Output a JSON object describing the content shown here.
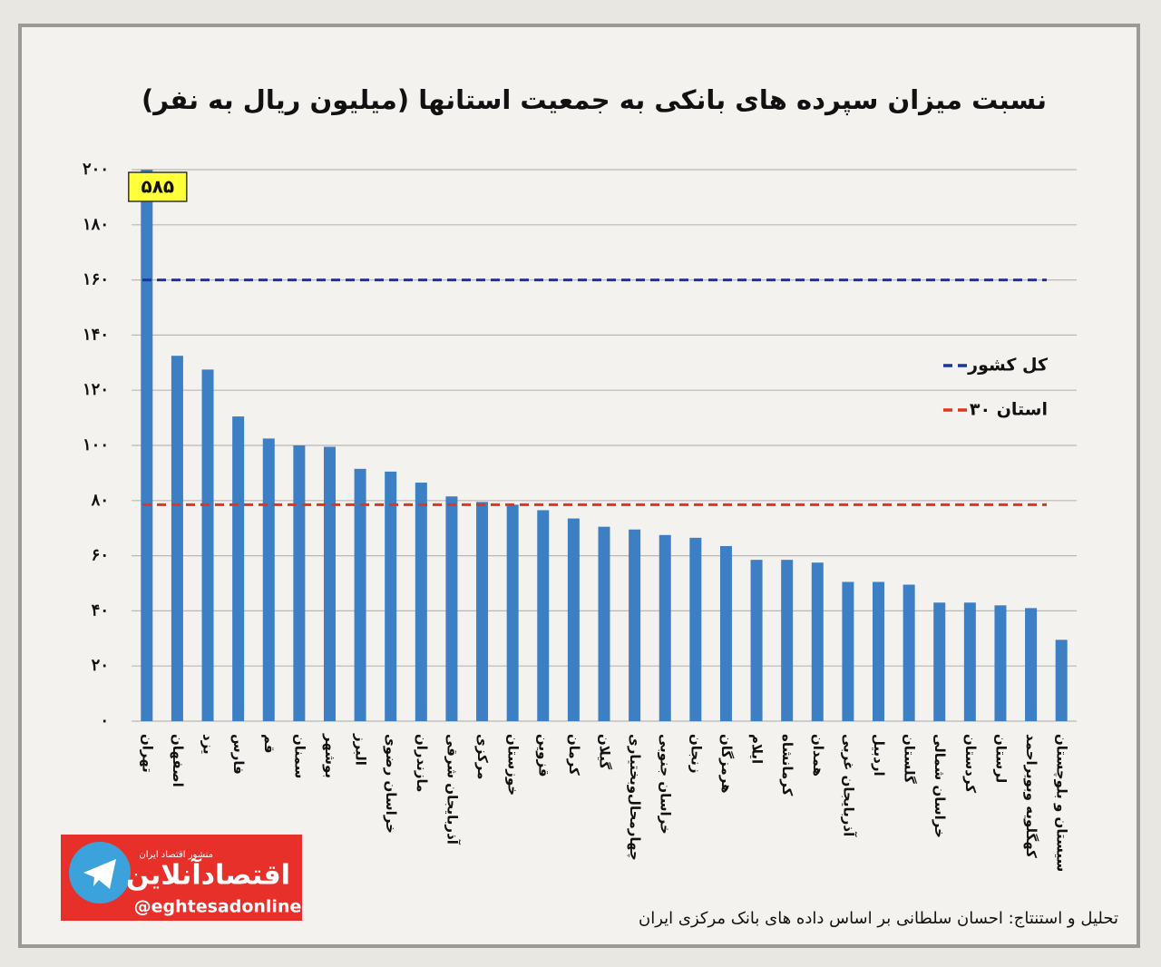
{
  "chart_data": {
    "type": "bar",
    "title": "نسبت میزان سپرده های بانکی به جمعیت استانها (میلیون ریال به نفر)",
    "categories": [
      "تهران",
      "اصفهان",
      "یزد",
      "فارس",
      "قم",
      "سمنان",
      "بوشهر",
      "البرز",
      "خراسان رضوی",
      "مازندران",
      "آذربایجان شرقی",
      "مرکزی",
      "خوزستان",
      "قزوین",
      "کرمان",
      "گیلان",
      "چهارمحال‌وبختیاری",
      "خراسان جنوبی",
      "زنجان",
      "هرمزگان",
      "ایلام",
      "کرمانشاه",
      "همدان",
      "آذربایجان غربی",
      "اردبیل",
      "گلستان",
      "خراسان شمالی",
      "کردستان",
      "لرستان",
      "کهگلویه وبویراحمد",
      "سیستان و بلوچستان"
    ],
    "values": [
      585,
      132.5,
      127.5,
      110.5,
      102.5,
      100,
      99.5,
      91.5,
      90.5,
      86.5,
      81.5,
      79.5,
      78.5,
      76.5,
      73.5,
      70.5,
      69.5,
      67.5,
      66.5,
      63.5,
      58.5,
      58.5,
      57.5,
      50.5,
      50.5,
      49.5,
      43,
      43,
      42,
      41,
      29.5
    ],
    "value_labels": [
      "۵۸۵",
      null,
      null,
      null,
      null,
      null,
      null,
      null,
      null,
      null,
      null,
      null,
      null,
      null,
      null,
      null,
      null,
      null,
      null,
      null,
      null,
      null,
      null,
      null,
      null,
      null,
      null,
      null,
      null,
      null,
      null
    ],
    "color": "#3d7fc4",
    "ylim": [
      0,
      200
    ],
    "yticks": [
      {
        "value": 0,
        "label": "۰"
      },
      {
        "value": 20,
        "label": "۲۰"
      },
      {
        "value": 40,
        "label": "۴۰"
      },
      {
        "value": 60,
        "label": "۶۰"
      },
      {
        "value": 80,
        "label": "۸۰"
      },
      {
        "value": 100,
        "label": "۱۰۰"
      },
      {
        "value": 120,
        "label": "۱۲۰"
      },
      {
        "value": 140,
        "label": "۱۴۰"
      },
      {
        "value": 160,
        "label": "۱۶۰"
      },
      {
        "value": 180,
        "label": "۱۸۰"
      },
      {
        "value": 200,
        "label": "۲۰۰"
      }
    ],
    "grid": true,
    "reference_lines": [
      {
        "name": "کل کشور",
        "value": 160,
        "color": "#1a33a8"
      },
      {
        "name": "۳۰ استان",
        "value": 78.5,
        "color": "#e2341c"
      }
    ],
    "source": "تحلیل و استنتاج: احسان سلطانی بر اساس داده های بانک مرکزی ایران"
  },
  "logo": {
    "name": "اقتصادآنلاین",
    "tagline": "منشور اقتصاد ایران",
    "handle": "@eghtesadonline"
  }
}
